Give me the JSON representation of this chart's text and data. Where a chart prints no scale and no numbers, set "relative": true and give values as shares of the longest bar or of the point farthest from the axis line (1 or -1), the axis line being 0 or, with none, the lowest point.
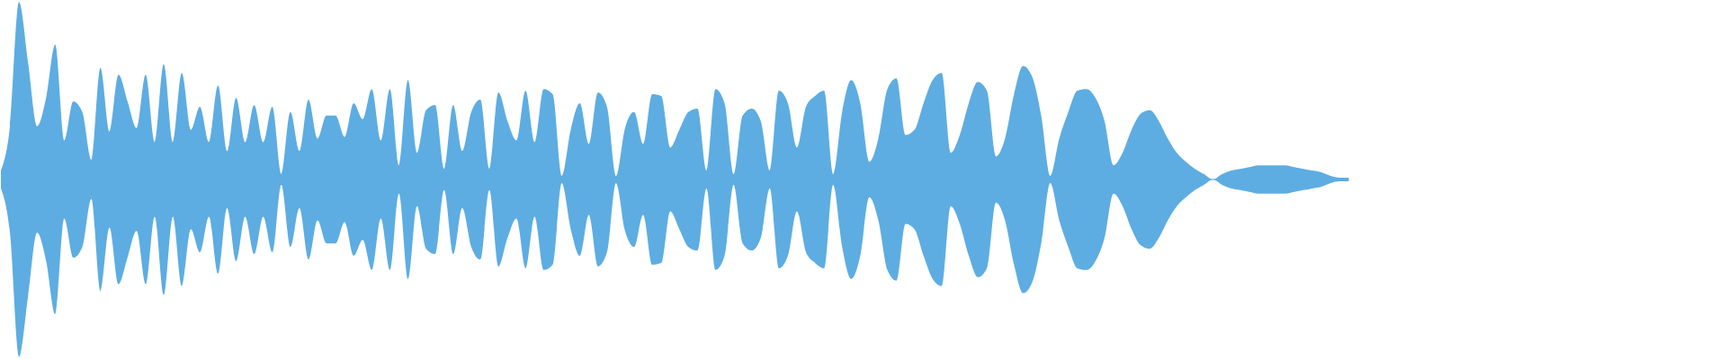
{
  "chart_data": {
    "type": "area",
    "relative": true,
    "ref_lines": [
      {
        "axis": "y",
        "value": 0,
        "color": "#5dade2"
      }
    ],
    "categories": [
      null,
      null,
      null,
      null,
      null,
      null,
      null,
      null,
      null,
      null,
      null,
      null,
      null,
      null,
      null,
      null,
      null,
      null,
      null,
      null,
      null,
      null,
      null,
      null,
      null,
      null,
      null,
      null,
      null,
      null,
      null,
      null,
      null,
      null,
      null,
      null,
      null,
      null,
      null,
      null,
      null,
      null,
      null,
      null,
      null,
      null,
      null,
      null,
      null,
      null,
      null,
      null,
      null,
      null,
      null,
      null,
      null,
      null,
      null,
      null,
      null,
      null,
      null,
      null,
      null,
      null,
      null,
      null,
      null,
      null,
      null,
      null,
      null,
      null,
      null,
      null,
      null,
      null,
      null,
      null,
      null,
      null,
      null,
      null,
      null,
      null,
      null,
      null,
      null,
      null,
      null,
      null,
      null,
      null,
      null,
      null,
      null,
      null,
      null,
      null,
      null,
      null,
      null,
      null,
      null,
      null,
      null,
      null,
      null,
      null,
      null,
      null,
      null,
      null,
      null,
      null,
      null,
      null,
      null,
      null,
      null,
      null,
      null,
      null,
      null,
      null,
      null,
      null,
      null,
      null,
      null,
      null,
      null,
      null,
      null,
      null,
      null,
      null,
      null,
      null,
      null,
      null,
      null,
      null,
      null,
      null,
      null,
      null,
      null,
      null
    ],
    "series": [
      {
        "color": "#5dade2",
        "values": [
          0.05,
          0.3,
          1.0,
          0.66,
          0.3,
          0.46,
          0.76,
          0.22,
          0.44,
          0.38,
          0.11,
          0.63,
          0.27,
          0.59,
          0.44,
          0.29,
          0.59,
          0.21,
          0.65,
          0.21,
          0.6,
          0.28,
          0.41,
          0.21,
          0.53,
          0.16,
          0.46,
          0.21,
          0.42,
          0.21,
          0.41,
          0.03,
          0.38,
          0.16,
          0.45,
          0.23,
          0.36,
          0.36,
          0.24,
          0.43,
          0.34,
          0.51,
          0.22,
          0.51,
          0.08,
          0.56,
          0.15,
          0.39,
          0.42,
          0.06,
          0.42,
          0.16,
          0.38,
          0.45,
          0.06,
          0.49,
          0.33,
          0.22,
          0.5,
          0.21,
          0.51,
          0.48,
          0.02,
          0.28,
          0.43,
          0.2,
          0.49,
          0.41,
          0.02,
          0.29,
          0.38,
          0.2,
          0.48,
          0.47,
          0.18,
          0.28,
          0.38,
          0.4,
          0.05,
          0.51,
          0.43,
          0.03,
          0.36,
          0.4,
          0.33,
          0.05,
          0.5,
          0.43,
          0.18,
          0.41,
          0.47,
          0.5,
          0.03,
          0.38,
          0.56,
          0.43,
          0.1,
          0.23,
          0.51,
          0.57,
          0.25,
          0.28,
          0.43,
          0.56,
          0.6,
          0.15,
          0.25,
          0.43,
          0.55,
          0.5,
          0.13,
          0.23,
          0.48,
          0.64,
          0.58,
          0.36,
          0.02,
          0.23,
          0.38,
          0.5,
          0.51,
          0.46,
          0.33,
          0.08,
          0.15,
          0.28,
          0.37,
          0.39,
          0.33,
          0.23,
          0.15,
          0.1,
          0.06,
          0.03,
          0.0,
          0.03,
          0.05,
          0.06,
          0.07,
          0.08,
          0.08,
          0.08,
          0.08,
          0.07,
          0.06,
          0.05,
          0.04,
          0.02,
          0.01,
          0.01
        ]
      },
      {
        "color": "#5dade2",
        "values": [
          -0.05,
          -0.3,
          -1.0,
          -0.66,
          -0.3,
          -0.46,
          -0.76,
          -0.22,
          -0.44,
          -0.38,
          -0.11,
          -0.63,
          -0.27,
          -0.59,
          -0.44,
          -0.29,
          -0.59,
          -0.21,
          -0.65,
          -0.21,
          -0.6,
          -0.28,
          -0.41,
          -0.21,
          -0.53,
          -0.16,
          -0.46,
          -0.21,
          -0.42,
          -0.21,
          -0.41,
          -0.03,
          -0.38,
          -0.16,
          -0.45,
          -0.23,
          -0.36,
          -0.36,
          -0.24,
          -0.43,
          -0.34,
          -0.51,
          -0.22,
          -0.51,
          -0.08,
          -0.56,
          -0.15,
          -0.39,
          -0.42,
          -0.06,
          -0.42,
          -0.16,
          -0.38,
          -0.45,
          -0.06,
          -0.49,
          -0.33,
          -0.22,
          -0.5,
          -0.21,
          -0.51,
          -0.48,
          -0.02,
          -0.28,
          -0.43,
          -0.2,
          -0.49,
          -0.41,
          -0.02,
          -0.29,
          -0.38,
          -0.2,
          -0.48,
          -0.47,
          -0.18,
          -0.28,
          -0.38,
          -0.4,
          -0.05,
          -0.51,
          -0.43,
          -0.03,
          -0.36,
          -0.4,
          -0.33,
          -0.05,
          -0.5,
          -0.43,
          -0.18,
          -0.41,
          -0.47,
          -0.5,
          -0.03,
          -0.38,
          -0.56,
          -0.43,
          -0.1,
          -0.23,
          -0.51,
          -0.57,
          -0.25,
          -0.28,
          -0.43,
          -0.56,
          -0.6,
          -0.15,
          -0.25,
          -0.43,
          -0.55,
          -0.5,
          -0.13,
          -0.23,
          -0.48,
          -0.64,
          -0.58,
          -0.36,
          -0.02,
          -0.23,
          -0.38,
          -0.5,
          -0.51,
          -0.46,
          -0.33,
          -0.08,
          -0.15,
          -0.28,
          -0.37,
          -0.39,
          -0.33,
          -0.23,
          -0.15,
          -0.1,
          -0.06,
          -0.03,
          0.0,
          -0.03,
          -0.05,
          -0.06,
          -0.07,
          -0.08,
          -0.08,
          -0.08,
          -0.08,
          -0.07,
          -0.06,
          -0.05,
          -0.04,
          -0.02,
          -0.01,
          -0.01
        ]
      }
    ]
  }
}
